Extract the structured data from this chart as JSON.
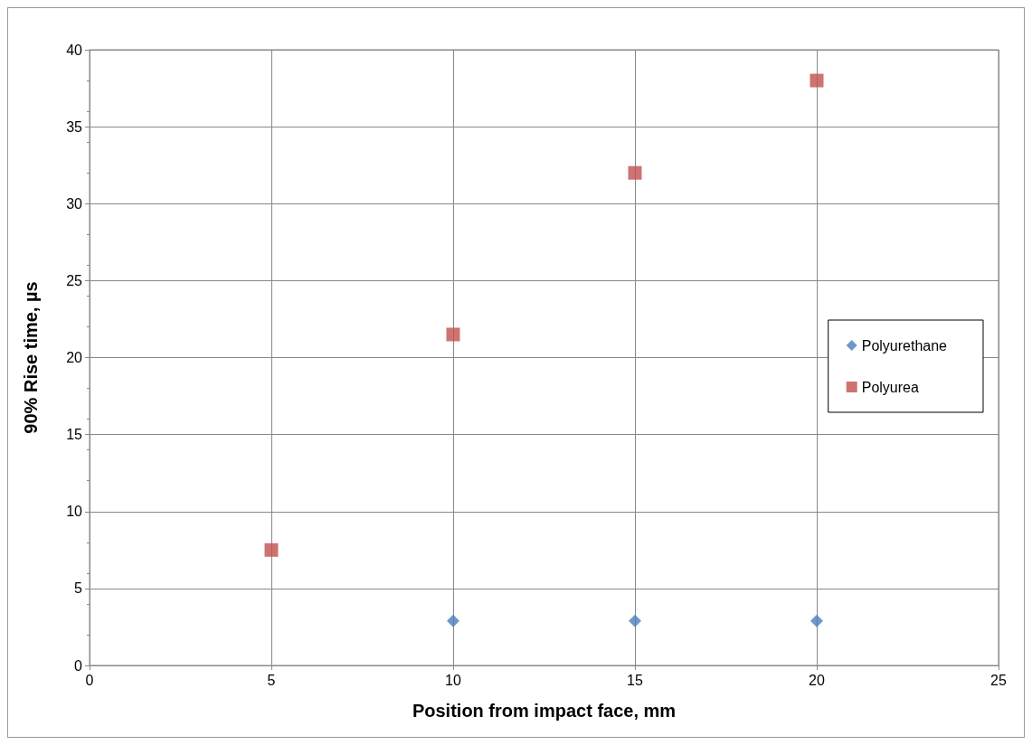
{
  "chart_data": {
    "type": "scatter",
    "xlabel": "Position from impact face, mm",
    "ylabel": "90% Rise time, µs",
    "series": [
      {
        "name": "Polyurethane",
        "color": "#4a7ebb",
        "marker": "diamond",
        "x": [
          10,
          15,
          20
        ],
        "values": [
          2.9,
          2.9,
          2.9
        ]
      },
      {
        "name": "Polyurea",
        "color": "#c0504d",
        "marker": "square",
        "x": [
          5,
          10,
          15,
          20
        ],
        "values": [
          7.5,
          21.5,
          32,
          38
        ]
      }
    ],
    "xlim": [
      0,
      25
    ],
    "xticks": [
      0,
      5,
      10,
      15,
      20,
      25
    ],
    "ylim": [
      0,
      40
    ],
    "yticks": [
      0,
      5,
      10,
      15,
      20,
      25,
      30,
      35,
      40
    ],
    "grid": true,
    "legend": "right"
  }
}
